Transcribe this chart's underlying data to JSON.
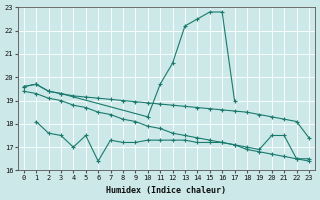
{
  "xlabel": "Humidex (Indice chaleur)",
  "bg_color": "#cce8e8",
  "line_color": "#1a7a6e",
  "grid_color": "#b0d4d4",
  "xlim": [
    -0.5,
    23.5
  ],
  "ylim": [
    16,
    23
  ],
  "yticks": [
    16,
    17,
    18,
    19,
    20,
    21,
    22,
    23
  ],
  "xticks": [
    0,
    1,
    2,
    3,
    4,
    5,
    6,
    7,
    8,
    9,
    10,
    11,
    12,
    13,
    14,
    15,
    16,
    17,
    18,
    19,
    20,
    21,
    22,
    23
  ],
  "line1_x": [
    0,
    1,
    2,
    3,
    10,
    11,
    12,
    13,
    14,
    15,
    16,
    17
  ],
  "line1_y": [
    19.6,
    19.7,
    19.4,
    19.3,
    18.3,
    19.7,
    20.6,
    22.2,
    22.5,
    22.8,
    22.8,
    19.0
  ],
  "line2_x": [
    0,
    1,
    2,
    3,
    4,
    5,
    6,
    7,
    8,
    9,
    10,
    11,
    12,
    13,
    14,
    15,
    16,
    17,
    18,
    19,
    20,
    21,
    22,
    23
  ],
  "line2_y": [
    19.6,
    19.7,
    19.4,
    19.3,
    19.2,
    19.15,
    19.1,
    19.05,
    19.0,
    18.95,
    18.9,
    18.85,
    18.8,
    18.75,
    18.7,
    18.65,
    18.6,
    18.55,
    18.5,
    18.4,
    18.3,
    18.2,
    18.1,
    17.4
  ],
  "line3_x": [
    0,
    1,
    2,
    3,
    4,
    5,
    6,
    7,
    8,
    9,
    10,
    11,
    12,
    13,
    14,
    15,
    16,
    17,
    18,
    19,
    20,
    21,
    22,
    23
  ],
  "line3_y": [
    19.4,
    19.3,
    19.1,
    19.0,
    18.8,
    18.7,
    18.5,
    18.4,
    18.2,
    18.1,
    17.9,
    17.8,
    17.6,
    17.5,
    17.4,
    17.3,
    17.2,
    17.1,
    16.9,
    16.8,
    16.7,
    16.6,
    16.5,
    16.4
  ],
  "line4_x": [
    1,
    2,
    3,
    4,
    5,
    6,
    7,
    8,
    9,
    10,
    11,
    12,
    13,
    14,
    15,
    16,
    17,
    18,
    19,
    20,
    21,
    22,
    23
  ],
  "line4_y": [
    18.1,
    17.6,
    17.5,
    17.0,
    17.5,
    16.4,
    17.3,
    17.2,
    17.2,
    17.3,
    17.3,
    17.3,
    17.3,
    17.2,
    17.2,
    17.2,
    17.1,
    17.0,
    16.9,
    17.5,
    17.5,
    16.5,
    16.5
  ]
}
